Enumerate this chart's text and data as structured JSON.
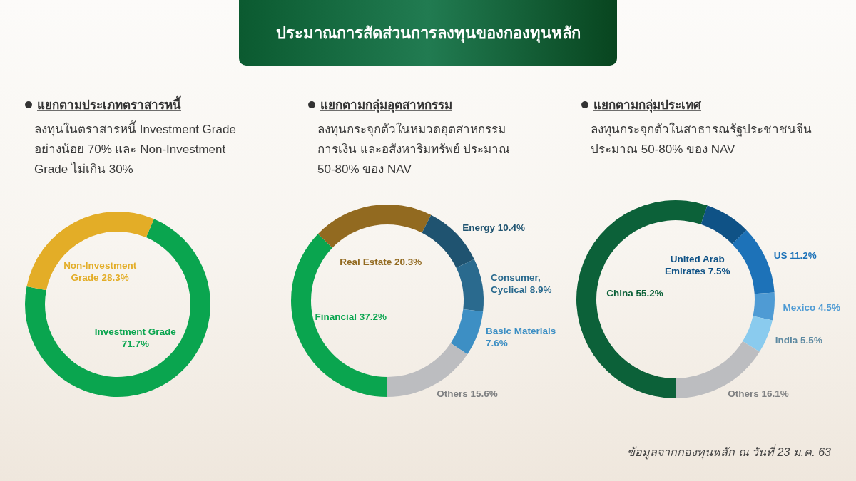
{
  "chart_data": [
    {
      "type": "donut",
      "title": "แยกตามประเภทตราสารหนี้",
      "subtitle": "ลงทุนในตราสารหนี้ Investment Grade อย่างน้อย 70% และ Non-Investment Grade ไม่เกิน 30%",
      "categories": [
        "Investment Grade",
        "Non-Investment Grade"
      ],
      "values": [
        71.7,
        28.3
      ],
      "value_labels": [
        "71.7%",
        "28.3%"
      ],
      "colors": [
        "#0aa54f",
        "#e3ad27"
      ],
      "annotations": [
        "ประมาณการสัดส่วนการลงทุนของกองทุนหลัก"
      ]
    },
    {
      "type": "donut",
      "title": "แยกตามกลุ่มอุตสาหกรรม",
      "subtitle": "ลงทุนกระจุกตัวในหมวดอุตสาหกรรม การเงิน และอสังหาริมทรัพย์ ประมาณ 50-80% ของ NAV",
      "categories": [
        "Financial",
        "Real Estate",
        "Energy",
        "Consumer, Cyclical",
        "Basic Materials",
        "Others"
      ],
      "values": [
        37.2,
        20.3,
        10.4,
        8.9,
        7.6,
        15.6
      ],
      "value_labels": [
        "37.2%",
        "20.3%",
        "10.4%",
        "8.9%",
        "7.6%",
        "15.6%"
      ],
      "colors": [
        "#0aa54f",
        "#926a20",
        "#1f5370",
        "#2a6a8e",
        "#3d8fc4",
        "#bcbdc0"
      ]
    },
    {
      "type": "donut",
      "title": "แยกตามกลุ่มประเทศ",
      "subtitle": "ลงทุนกระจุกตัวในสาธารณรัฐประชาชนจีน ประมาณ 50-80% ของ NAV",
      "categories": [
        "China",
        "United Arab Emirates",
        "US",
        "Mexico",
        "India",
        "Others"
      ],
      "values": [
        55.2,
        7.5,
        11.2,
        4.5,
        5.5,
        16.1
      ],
      "value_labels": [
        "55.2%",
        "7.5%",
        "11.2%",
        "4.5%",
        "5.5%",
        "16.1%"
      ],
      "colors": [
        "#0c6139",
        "#0f5286",
        "#1d72b8",
        "#4f9bd4",
        "#8acbee",
        "#bcbdc0"
      ],
      "annotations": [
        "ข้อมูลจากกองทุนหลัก ณ วันที่ 23 ม.ค. 63"
      ]
    }
  ]
}
